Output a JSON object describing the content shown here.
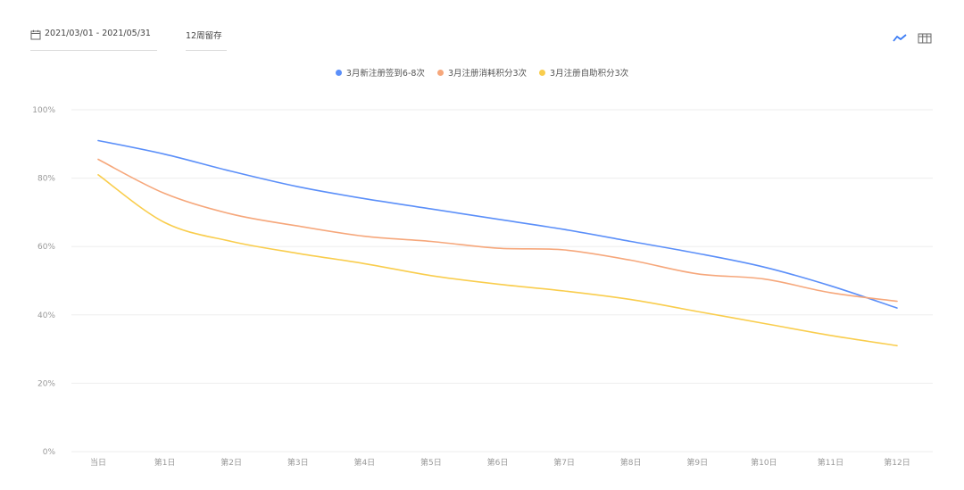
{
  "toolbar": {
    "date_range": "2021/03/01 - 2021/05/31",
    "weeks": "12周留存",
    "line_icon": "line-chart-icon",
    "table_icon": "table-icon"
  },
  "colors": {
    "series": [
      "#5b8ff9",
      "#f6a77b",
      "#f9cd4d"
    ],
    "grid": "#eeeeee"
  },
  "chart_data": {
    "type": "line",
    "title": "",
    "xlabel": "",
    "ylabel": "",
    "categories": [
      "当日",
      "第1日",
      "第2日",
      "第3日",
      "第4日",
      "第5日",
      "第6日",
      "第7日",
      "第8日",
      "第9日",
      "第10日",
      "第11日",
      "第12日"
    ],
    "y_ticks": [
      "0%",
      "20%",
      "40%",
      "60%",
      "80%",
      "100%"
    ],
    "ylim": [
      0,
      100
    ],
    "grid": true,
    "legend": "top-center",
    "series": [
      {
        "name": "3月新注册签到6-8次",
        "values": [
          91,
          87,
          82,
          77.5,
          74,
          71,
          68,
          65,
          61.5,
          58,
          54,
          48.5,
          42
        ]
      },
      {
        "name": "3月注册消耗积分3次",
        "values": [
          85.5,
          75.5,
          69.5,
          66,
          63,
          61.5,
          59.5,
          59,
          56,
          52,
          50.5,
          46.5,
          44
        ]
      },
      {
        "name": "3月注册自助积分3次",
        "values": [
          81,
          67,
          61.5,
          58,
          55,
          51.5,
          49,
          47,
          44.5,
          41,
          37.5,
          34,
          31
        ]
      }
    ]
  }
}
